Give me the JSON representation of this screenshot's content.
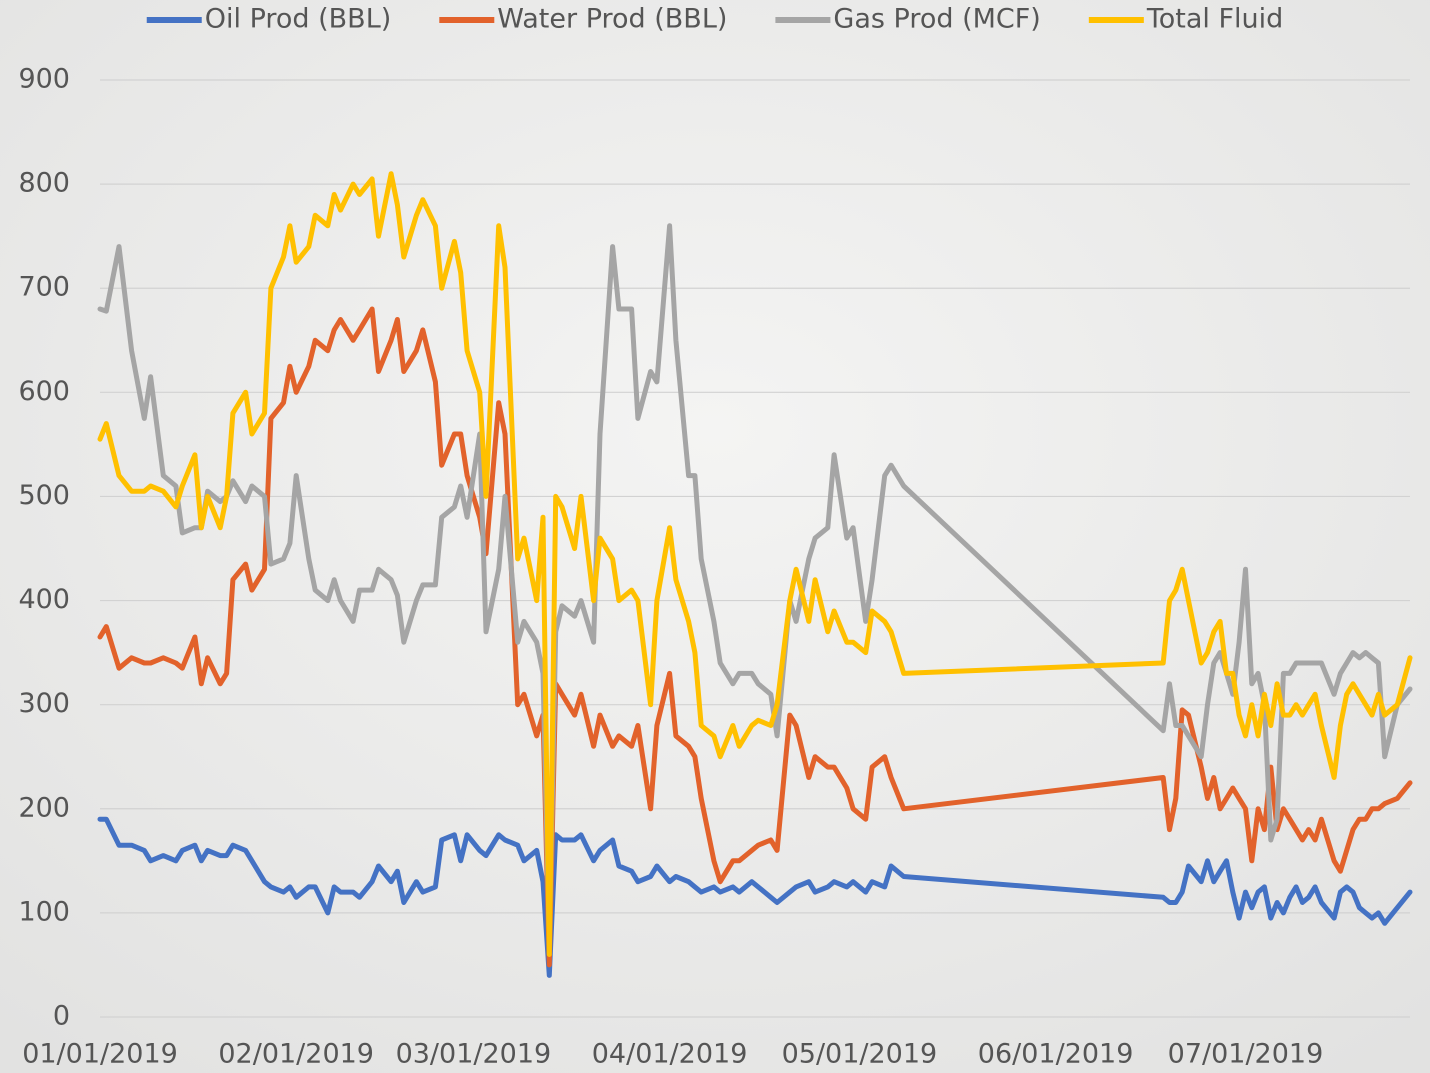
{
  "chart_data": {
    "type": "line",
    "x": [
      "01/01/2019",
      "01/02/2019",
      "01/04/2019",
      "01/06/2019",
      "01/08/2019",
      "01/09/2019",
      "01/11/2019",
      "01/13/2019",
      "01/14/2019",
      "01/16/2019",
      "01/17/2019",
      "01/18/2019",
      "01/20/2019",
      "01/21/2019",
      "01/22/2019",
      "01/24/2019",
      "01/25/2019",
      "01/27/2019",
      "01/28/2019",
      "01/30/2019",
      "01/31/2019",
      "02/01/2019",
      "02/03/2019",
      "02/04/2019",
      "02/06/2019",
      "02/07/2019",
      "02/08/2019",
      "02/10/2019",
      "02/11/2019",
      "02/13/2019",
      "02/14/2019",
      "02/16/2019",
      "02/17/2019",
      "02/18/2019",
      "02/20/2019",
      "02/21/2019",
      "02/23/2019",
      "02/24/2019",
      "02/26/2019",
      "02/27/2019",
      "02/28/2019",
      "03/02/2019",
      "03/03/2019",
      "03/05/2019",
      "03/06/2019",
      "03/08/2019",
      "03/09/2019",
      "03/11/2019",
      "03/12/2019",
      "03/13/2019",
      "03/14/2019",
      "03/15/2019",
      "03/17/2019",
      "03/18/2019",
      "03/20/2019",
      "03/21/2019",
      "03/23/2019",
      "03/24/2019",
      "03/26/2019",
      "03/27/2019",
      "03/29/2019",
      "03/30/2019",
      "04/01/2019",
      "04/02/2019",
      "04/04/2019",
      "04/05/2019",
      "04/06/2019",
      "04/08/2019",
      "04/09/2019",
      "04/11/2019",
      "04/12/2019",
      "04/14/2019",
      "04/15/2019",
      "04/17/2019",
      "04/18/2019",
      "04/20/2019",
      "04/21/2019",
      "04/23/2019",
      "04/24/2019",
      "04/26/2019",
      "04/27/2019",
      "04/29/2019",
      "04/30/2019",
      "05/02/2019",
      "05/03/2019",
      "05/05/2019",
      "05/06/2019",
      "05/08/2019",
      "06/18/2019",
      "06/19/2019",
      "06/20/2019",
      "06/21/2019",
      "06/22/2019",
      "06/24/2019",
      "06/25/2019",
      "06/26/2019",
      "06/27/2019",
      "06/28/2019",
      "06/29/2019",
      "06/30/2019",
      "07/01/2019",
      "07/02/2019",
      "07/03/2019",
      "07/04/2019",
      "07/05/2019",
      "07/06/2019",
      "07/07/2019",
      "07/08/2019",
      "07/09/2019",
      "07/10/2019",
      "07/11/2019",
      "07/12/2019",
      "07/13/2019",
      "07/15/2019",
      "07/16/2019",
      "07/17/2019",
      "07/18/2019",
      "07/19/2019",
      "07/20/2019",
      "07/21/2019",
      "07/22/2019",
      "07/23/2019",
      "07/25/2019",
      "07/27/2019"
    ],
    "series": [
      {
        "name": "Oil Prod (BBL)",
        "color": "#4472c4",
        "values": [
          190,
          190,
          165,
          165,
          160,
          150,
          155,
          150,
          160,
          165,
          150,
          160,
          155,
          155,
          165,
          160,
          150,
          130,
          125,
          120,
          125,
          115,
          125,
          125,
          100,
          125,
          120,
          120,
          115,
          130,
          145,
          130,
          140,
          110,
          130,
          120,
          125,
          170,
          175,
          150,
          175,
          160,
          155,
          175,
          170,
          165,
          150,
          160,
          130,
          40,
          175,
          170,
          170,
          175,
          150,
          160,
          170,
          145,
          140,
          130,
          135,
          145,
          130,
          135,
          130,
          125,
          120,
          125,
          120,
          125,
          120,
          130,
          125,
          115,
          110,
          120,
          125,
          130,
          120,
          125,
          130,
          125,
          130,
          120,
          130,
          125,
          145,
          135,
          115,
          110,
          110,
          120,
          145,
          130,
          150,
          130,
          140,
          150,
          120,
          95,
          120,
          105,
          120,
          125,
          95,
          110,
          100,
          115,
          125,
          110,
          115,
          125,
          110,
          95,
          120,
          125,
          120,
          105,
          100,
          95,
          100,
          90,
          105,
          120
        ]
      },
      {
        "name": "Water Prod (BBL)",
        "color": "#e2622b",
        "values": [
          365,
          375,
          335,
          345,
          340,
          340,
          345,
          340,
          335,
          365,
          320,
          345,
          320,
          330,
          420,
          435,
          410,
          430,
          575,
          590,
          625,
          600,
          625,
          650,
          640,
          660,
          670,
          650,
          660,
          680,
          620,
          650,
          670,
          620,
          640,
          660,
          610,
          530,
          560,
          560,
          520,
          480,
          445,
          590,
          560,
          300,
          310,
          270,
          290,
          50,
          320,
          310,
          290,
          310,
          260,
          290,
          260,
          270,
          260,
          280,
          200,
          280,
          330,
          270,
          260,
          250,
          210,
          150,
          130,
          150,
          150,
          160,
          165,
          170,
          160,
          290,
          280,
          230,
          250,
          240,
          240,
          220,
          200,
          190,
          240,
          250,
          230,
          200,
          230,
          180,
          210,
          295,
          290,
          240,
          210,
          230,
          200,
          210,
          220,
          210,
          200,
          150,
          200,
          180,
          240,
          180,
          200,
          190,
          180,
          170,
          180,
          170,
          190,
          150,
          140,
          160,
          180,
          190,
          190,
          200,
          200,
          205,
          210,
          225
        ]
      },
      {
        "name": "Gas Prod (MCF)",
        "color": "#a5a5a5",
        "values": [
          680,
          678,
          740,
          640,
          575,
          615,
          520,
          510,
          465,
          470,
          470,
          505,
          495,
          500,
          515,
          495,
          510,
          500,
          435,
          440,
          455,
          520,
          440,
          410,
          400,
          420,
          400,
          380,
          410,
          410,
          430,
          420,
          405,
          360,
          400,
          415,
          415,
          480,
          490,
          510,
          480,
          560,
          370,
          430,
          500,
          360,
          380,
          360,
          330,
          70,
          370,
          395,
          385,
          400,
          360,
          560,
          740,
          680,
          680,
          575,
          620,
          610,
          760,
          650,
          520,
          520,
          440,
          380,
          340,
          320,
          330,
          330,
          320,
          310,
          270,
          400,
          380,
          440,
          460,
          470,
          540,
          460,
          470,
          380,
          420,
          520,
          530,
          510,
          275,
          320,
          280,
          280,
          270,
          250,
          300,
          340,
          350,
          330,
          310,
          360,
          430,
          320,
          330,
          300,
          170,
          190,
          330,
          330,
          340,
          340,
          340,
          340,
          340,
          310,
          330,
          340,
          350,
          345,
          350,
          345,
          340,
          250,
          300,
          315
        ]
      },
      {
        "name": "Total Fluid",
        "color": "#ffc000",
        "values": [
          555,
          570,
          520,
          505,
          505,
          510,
          505,
          490,
          510,
          540,
          470,
          500,
          470,
          500,
          580,
          600,
          560,
          580,
          700,
          730,
          760,
          725,
          740,
          770,
          760,
          790,
          775,
          800,
          790,
          805,
          750,
          810,
          780,
          730,
          770,
          785,
          760,
          700,
          745,
          715,
          640,
          600,
          500,
          760,
          720,
          440,
          460,
          400,
          480,
          60,
          500,
          490,
          450,
          500,
          400,
          460,
          440,
          400,
          410,
          400,
          300,
          400,
          470,
          420,
          380,
          350,
          280,
          270,
          250,
          280,
          260,
          280,
          285,
          280,
          300,
          400,
          430,
          380,
          420,
          370,
          390,
          360,
          360,
          350,
          390,
          380,
          370,
          330,
          340,
          400,
          410,
          430,
          400,
          340,
          350,
          370,
          380,
          330,
          330,
          290,
          270,
          300,
          270,
          310,
          280,
          320,
          290,
          290,
          300,
          290,
          300,
          310,
          280,
          230,
          280,
          310,
          320,
          310,
          300,
          290,
          310,
          290,
          300,
          345
        ]
      }
    ],
    "xlim": [
      "01/01/2019",
      "07/27/2019"
    ],
    "xticks": [
      "01/01/2019",
      "02/01/2019",
      "03/01/2019",
      "04/01/2019",
      "05/01/2019",
      "06/01/2019",
      "07/01/2019"
    ],
    "ylim": [
      0,
      900
    ],
    "yticks": [
      0,
      100,
      200,
      300,
      400,
      500,
      600,
      700,
      800,
      900
    ],
    "grid": true,
    "legend": "top"
  }
}
